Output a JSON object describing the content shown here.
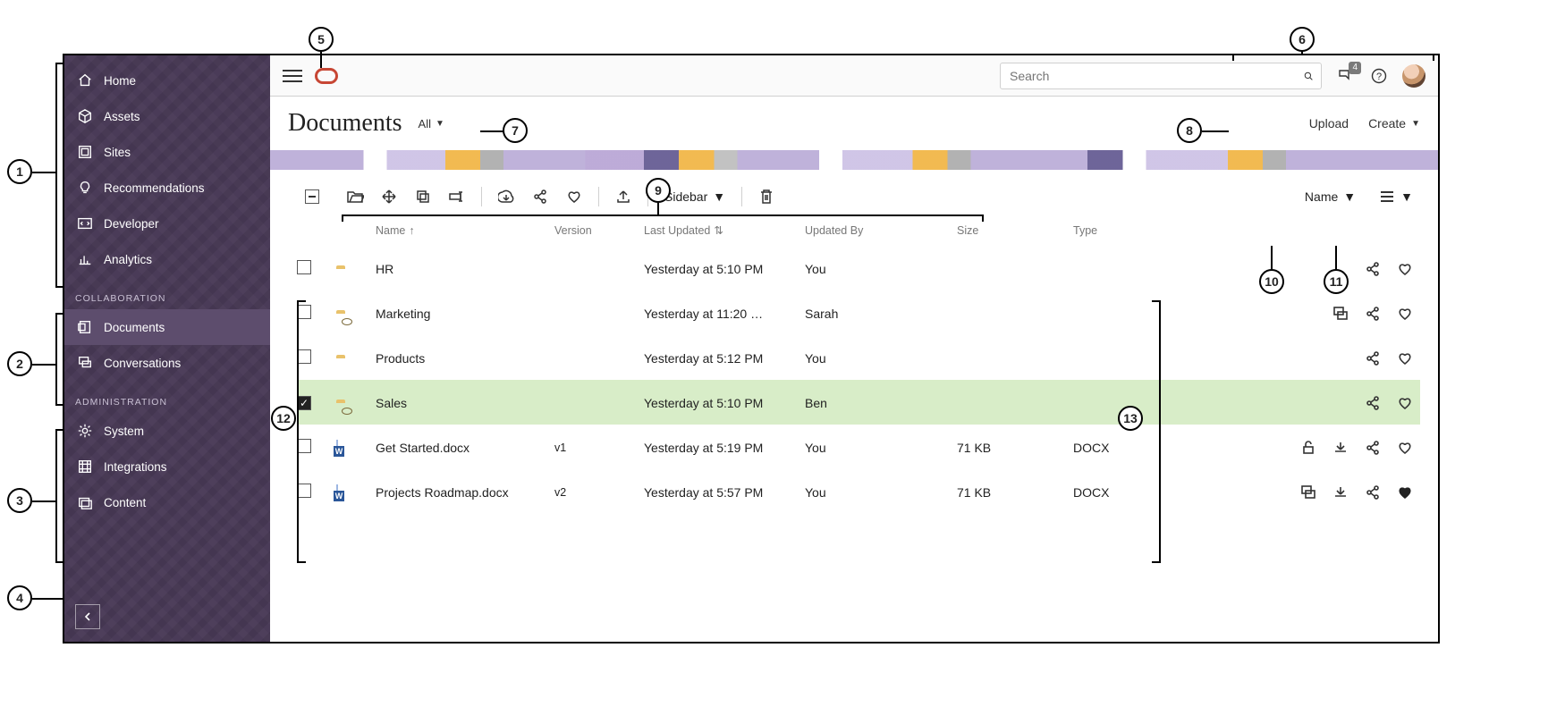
{
  "sidebar": {
    "groups": [
      {
        "items": [
          {
            "label": "Home",
            "icon": "home"
          },
          {
            "label": "Assets",
            "icon": "cube"
          },
          {
            "label": "Sites",
            "icon": "site"
          },
          {
            "label": "Recommendations",
            "icon": "bulb"
          },
          {
            "label": "Developer",
            "icon": "code"
          },
          {
            "label": "Analytics",
            "icon": "chart"
          }
        ]
      },
      {
        "label": "COLLABORATION",
        "items": [
          {
            "label": "Documents",
            "icon": "doc",
            "active": true
          },
          {
            "label": "Conversations",
            "icon": "chat"
          }
        ]
      },
      {
        "label": "ADMINISTRATION",
        "items": [
          {
            "label": "System",
            "icon": "gear"
          },
          {
            "label": "Integrations",
            "icon": "integ"
          },
          {
            "label": "Content",
            "icon": "content"
          }
        ]
      }
    ]
  },
  "topbar": {
    "search_placeholder": "Search",
    "notifications_count": "4"
  },
  "page": {
    "title": "Documents",
    "filter_label": "All",
    "upload_label": "Upload",
    "create_label": "Create"
  },
  "toolbar": {
    "sidebar_label": "Sidebar",
    "sort_label": "Name"
  },
  "columns": {
    "name": "Name",
    "version": "Version",
    "last_updated": "Last Updated",
    "updated_by": "Updated By",
    "size": "Size",
    "type": "Type"
  },
  "rows": [
    {
      "kind": "folder",
      "shared": false,
      "name": "HR",
      "version": "",
      "updated": "Yesterday at 5:10 PM",
      "by": "You",
      "size": "",
      "type": "",
      "selected": false,
      "actions": [
        "share",
        "fav"
      ]
    },
    {
      "kind": "folder",
      "shared": true,
      "name": "Marketing",
      "version": "",
      "updated": "Yesterday at 11:20 …",
      "by": "Sarah",
      "size": "",
      "type": "",
      "selected": false,
      "actions": [
        "chat",
        "share",
        "fav"
      ]
    },
    {
      "kind": "folder",
      "shared": false,
      "name": "Products",
      "version": "",
      "updated": "Yesterday at 5:12 PM",
      "by": "You",
      "size": "",
      "type": "",
      "selected": false,
      "actions": [
        "share",
        "fav"
      ]
    },
    {
      "kind": "folder",
      "shared": true,
      "name": "Sales",
      "version": "",
      "updated": "Yesterday at 5:10 PM",
      "by": "Ben",
      "size": "",
      "type": "",
      "selected": true,
      "actions": [
        "share",
        "fav"
      ]
    },
    {
      "kind": "docx",
      "shared": false,
      "name": "Get Started.docx",
      "version": "v1",
      "updated": "Yesterday at 5:19 PM",
      "by": "You",
      "size": "71 KB",
      "type": "DOCX",
      "selected": false,
      "actions": [
        "lock",
        "download",
        "share",
        "fav"
      ]
    },
    {
      "kind": "docx",
      "shared": false,
      "name": "Projects Roadmap.docx",
      "version": "v2",
      "updated": "Yesterday at 5:57 PM",
      "by": "You",
      "size": "71 KB",
      "type": "DOCX",
      "selected": false,
      "actions": [
        "chat",
        "download",
        "share",
        "fav-on"
      ]
    }
  ],
  "callouts": [
    "1",
    "2",
    "3",
    "4",
    "5",
    "6",
    "7",
    "8",
    "9",
    "10",
    "11",
    "12",
    "13"
  ]
}
